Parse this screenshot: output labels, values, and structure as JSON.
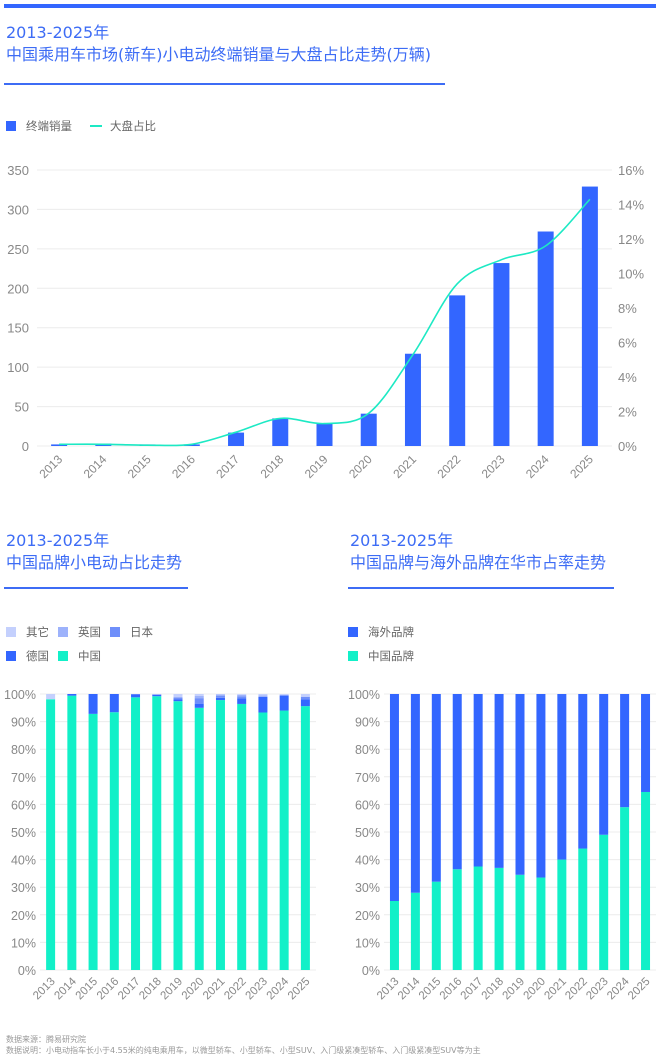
{
  "chart1": {
    "title_line1": "2013-2025年",
    "title_line2": "中国乘用车市场(新车)小电动终端销量与大盘占比走势(万辆)",
    "legend": [
      "终端销量",
      "大盘占比"
    ]
  },
  "chart2": {
    "title_line1": "2013-2025年",
    "title_line2": "中国品牌小电动占比走势",
    "legend": [
      "其它",
      "英国",
      "日本",
      "德国",
      "中国"
    ]
  },
  "chart3": {
    "title_line1": "2013-2025年",
    "title_line2": "中国品牌与海外品牌在华市占率走势",
    "legend": [
      "海外品牌",
      "中国品牌"
    ]
  },
  "notes": {
    "source": "数据来源：腾易研究院",
    "explain": "数据说明：小电动指车长小于4.55米的纯电乘用车，以微型轿车、小型轿车、小型SUV、入门级紧凑型轿车、入门级紧凑型SUV等为主"
  },
  "colors": {
    "accent": "#3d6cf5",
    "bar": "#3366ff",
    "line": "#1de9c4",
    "china": "#12f0c8",
    "germany": "#3366ff",
    "japan": "#6f8ffa",
    "uk": "#9db2fb",
    "other": "#c4d0fd"
  },
  "chart_data": [
    {
      "type": "bar+line",
      "categories": [
        "2013",
        "2014",
        "2015",
        "2016",
        "2017",
        "2018",
        "2019",
        "2020",
        "2021",
        "2022",
        "2023",
        "2024",
        "2025"
      ],
      "series": [
        {
          "name": "终端销量",
          "type": "bar",
          "axis": "left",
          "values": [
            2,
            3,
            2,
            2,
            17,
            35,
            28,
            41,
            117,
            191,
            232,
            272,
            329
          ]
        },
        {
          "name": "大盘占比",
          "type": "line",
          "axis": "right",
          "values": [
            0.1,
            0.1,
            0.05,
            0.1,
            0.8,
            1.6,
            1.3,
            1.9,
            5.3,
            9.4,
            10.8,
            11.6,
            14.3
          ]
        }
      ],
      "ylim": [
        0,
        350
      ],
      "yticks": [
        0,
        50,
        100,
        150,
        200,
        250,
        300,
        350
      ],
      "y2lim": [
        0,
        16
      ],
      "y2ticks": [
        "0%",
        "2%",
        "4%",
        "6%",
        "8%",
        "10%",
        "12%",
        "14%",
        "16%"
      ],
      "grid": true,
      "legend": "top-left"
    },
    {
      "type": "stacked-bar",
      "categories": [
        "2013",
        "2014",
        "2015",
        "2016",
        "2017",
        "2018",
        "2019",
        "2020",
        "2021",
        "2022",
        "2023",
        "2024",
        "2025"
      ],
      "series": [
        {
          "name": "中国",
          "values": [
            98.1,
            99.4,
            92.8,
            93.4,
            98.8,
            99.2,
            97.4,
            95.0,
            97.8,
            96.4,
            93.3,
            94.0,
            95.6
          ]
        },
        {
          "name": "德国",
          "values": [
            0,
            0.6,
            7.2,
            6.6,
            1.0,
            0.5,
            0.6,
            1.5,
            0.8,
            2.0,
            5.7,
            5.5,
            2.5
          ]
        },
        {
          "name": "日本",
          "values": [
            0,
            0,
            0,
            0,
            0.2,
            0.2,
            0.8,
            2.0,
            0.8,
            0.8,
            0,
            0,
            0.9
          ]
        },
        {
          "name": "英国",
          "values": [
            0,
            0,
            0,
            0,
            0,
            0,
            0,
            0.8,
            0.4,
            0.5,
            0.5,
            0,
            0
          ]
        },
        {
          "name": "其它",
          "values": [
            1.9,
            0,
            0,
            0,
            0,
            0.1,
            1.2,
            0.7,
            0.2,
            0.3,
            0.5,
            0.5,
            1.0
          ]
        }
      ],
      "ylim": [
        0,
        100
      ],
      "yticks": [
        "0%",
        "10%",
        "20%",
        "30%",
        "40%",
        "50%",
        "60%",
        "70%",
        "80%",
        "90%",
        "100%"
      ],
      "grid": true,
      "legend": "top-left"
    },
    {
      "type": "stacked-bar",
      "categories": [
        "2013",
        "2014",
        "2015",
        "2016",
        "2017",
        "2018",
        "2019",
        "2020",
        "2021",
        "2022",
        "2023",
        "2024",
        "2025"
      ],
      "series": [
        {
          "name": "中国品牌",
          "values": [
            25,
            28,
            32,
            36.5,
            37.5,
            37,
            34.5,
            33.5,
            40,
            44,
            49,
            59,
            64.5
          ]
        },
        {
          "name": "海外品牌",
          "values": [
            75,
            72,
            68,
            63.5,
            62.5,
            63,
            65.5,
            66.5,
            60,
            56,
            51,
            41,
            35.5
          ]
        }
      ],
      "ylim": [
        0,
        100
      ],
      "yticks": [
        "0%",
        "10%",
        "20%",
        "30%",
        "40%",
        "50%",
        "60%",
        "70%",
        "80%",
        "90%",
        "100%"
      ],
      "grid": true,
      "legend": "top-left"
    }
  ]
}
